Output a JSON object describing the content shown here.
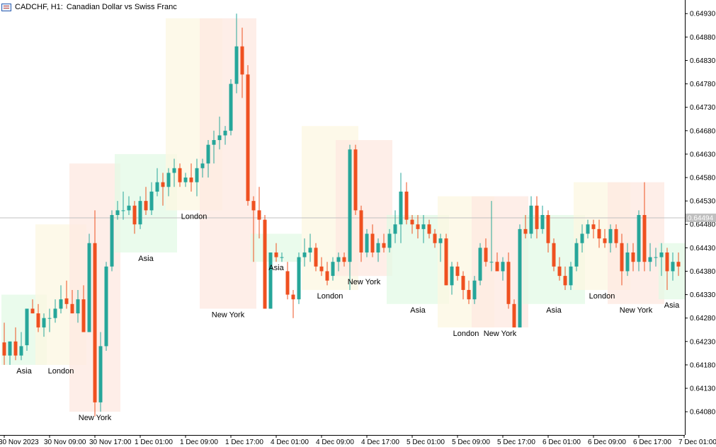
{
  "header": {
    "symbol": "CADCHF, H1:",
    "description": "Canadian Dollar vs Swiss Franc"
  },
  "colors": {
    "bull": "#26a69a",
    "bear": "#ef5020",
    "asia": "#e3fae6",
    "london": "#fcf7e2",
    "newyork": "#fde8e0",
    "current_price_line": "#c0c0c0",
    "current_price_tag": "#c0c0c0"
  },
  "chart_data": {
    "type": "candlestick",
    "title": "CADCHF, H1: Canadian Dollar vs Swiss Franc",
    "timeframe": "H1",
    "ylim": [
      0.6405,
      0.6495
    ],
    "y_ticks": [
      "0.64930",
      "0.64880",
      "0.64830",
      "0.64780",
      "0.64730",
      "0.64680",
      "0.64630",
      "0.64580",
      "0.64530",
      "0.64480",
      "0.64430",
      "0.64380",
      "0.64330",
      "0.64280",
      "0.64230",
      "0.64180",
      "0.64130",
      "0.64080"
    ],
    "x_ticks": [
      "30 Nov 2023",
      "30 Nov 09:00",
      "30 Nov 17:00",
      "1 Dec 01:00",
      "1 Dec 09:00",
      "1 Dec 17:00",
      "4 Dec 01:00",
      "4 Dec 09:00",
      "4 Dec 17:00",
      "5 Dec 01:00",
      "5 Dec 09:00",
      "5 Dec 17:00",
      "6 Dec 01:00",
      "6 Dec 09:00",
      "6 Dec 17:00",
      "7 Dec 01:00"
    ],
    "current_price": "0.64494",
    "candles": [
      {
        "o": 0.64228,
        "h": 0.6427,
        "l": 0.6418,
        "c": 0.642
      },
      {
        "o": 0.642,
        "h": 0.6423,
        "l": 0.6418,
        "c": 0.6423
      },
      {
        "o": 0.6423,
        "h": 0.6426,
        "l": 0.6419,
        "c": 0.642
      },
      {
        "o": 0.642,
        "h": 0.6425,
        "l": 0.6419,
        "c": 0.6422
      },
      {
        "o": 0.64222,
        "h": 0.643,
        "l": 0.6421,
        "c": 0.643
      },
      {
        "o": 0.643,
        "h": 0.6432,
        "l": 0.6429,
        "c": 0.6429
      },
      {
        "o": 0.6429,
        "h": 0.6431,
        "l": 0.6425,
        "c": 0.6426
      },
      {
        "o": 0.6426,
        "h": 0.6429,
        "l": 0.6424,
        "c": 0.6428
      },
      {
        "o": 0.6428,
        "h": 0.643,
        "l": 0.6425,
        "c": 0.6428
      },
      {
        "o": 0.6428,
        "h": 0.6432,
        "l": 0.6427,
        "c": 0.643
      },
      {
        "o": 0.643,
        "h": 0.6435,
        "l": 0.6429,
        "c": 0.6432
      },
      {
        "o": 0.64322,
        "h": 0.6436,
        "l": 0.643,
        "c": 0.6431
      },
      {
        "o": 0.6431,
        "h": 0.6434,
        "l": 0.6429,
        "c": 0.6429
      },
      {
        "o": 0.6429,
        "h": 0.6434,
        "l": 0.6427,
        "c": 0.6432
      },
      {
        "o": 0.6432,
        "h": 0.6435,
        "l": 0.6425,
        "c": 0.6425
      },
      {
        "o": 0.6425,
        "h": 0.6446,
        "l": 0.6425,
        "c": 0.6444
      },
      {
        "o": 0.6444,
        "h": 0.6451,
        "l": 0.6407,
        "c": 0.641
      },
      {
        "o": 0.641,
        "h": 0.6425,
        "l": 0.6408,
        "c": 0.6422
      },
      {
        "o": 0.6422,
        "h": 0.644,
        "l": 0.6421,
        "c": 0.6439
      },
      {
        "o": 0.6439,
        "h": 0.6451,
        "l": 0.6438,
        "c": 0.645
      },
      {
        "o": 0.645,
        "h": 0.6453,
        "l": 0.6449,
        "c": 0.6451
      },
      {
        "o": 0.6451,
        "h": 0.6455,
        "l": 0.6449,
        "c": 0.6451
      },
      {
        "o": 0.6451,
        "h": 0.6454,
        "l": 0.645,
        "c": 0.6452
      },
      {
        "o": 0.6452,
        "h": 0.6453,
        "l": 0.6446,
        "c": 0.6448
      },
      {
        "o": 0.6448,
        "h": 0.6454,
        "l": 0.6447,
        "c": 0.6453
      },
      {
        "o": 0.6453,
        "h": 0.6456,
        "l": 0.645,
        "c": 0.6451
      },
      {
        "o": 0.6451,
        "h": 0.6457,
        "l": 0.645,
        "c": 0.6455
      },
      {
        "o": 0.6455,
        "h": 0.646,
        "l": 0.6454,
        "c": 0.6457
      },
      {
        "o": 0.6457,
        "h": 0.6459,
        "l": 0.6452,
        "c": 0.6456
      },
      {
        "o": 0.6456,
        "h": 0.646,
        "l": 0.6454,
        "c": 0.6459
      },
      {
        "o": 0.6459,
        "h": 0.6462,
        "l": 0.6456,
        "c": 0.646
      },
      {
        "o": 0.646,
        "h": 0.6461,
        "l": 0.6456,
        "c": 0.6457
      },
      {
        "o": 0.6457,
        "h": 0.6459,
        "l": 0.6456,
        "c": 0.6458
      },
      {
        "o": 0.6458,
        "h": 0.6461,
        "l": 0.6455,
        "c": 0.6457
      },
      {
        "o": 0.6457,
        "h": 0.6462,
        "l": 0.6454,
        "c": 0.646
      },
      {
        "o": 0.646,
        "h": 0.6462,
        "l": 0.6458,
        "c": 0.6461
      },
      {
        "o": 0.6461,
        "h": 0.6466,
        "l": 0.6458,
        "c": 0.6465
      },
      {
        "o": 0.6465,
        "h": 0.6468,
        "l": 0.6461,
        "c": 0.6466
      },
      {
        "o": 0.6466,
        "h": 0.6471,
        "l": 0.6464,
        "c": 0.6467
      },
      {
        "o": 0.6467,
        "h": 0.6469,
        "l": 0.6465,
        "c": 0.6468
      },
      {
        "o": 0.6468,
        "h": 0.6479,
        "l": 0.6467,
        "c": 0.6478
      },
      {
        "o": 0.6478,
        "h": 0.6493,
        "l": 0.6476,
        "c": 0.6486
      },
      {
        "o": 0.6486,
        "h": 0.649,
        "l": 0.6475,
        "c": 0.648
      },
      {
        "o": 0.648,
        "h": 0.6482,
        "l": 0.6452,
        "c": 0.6453
      },
      {
        "o": 0.6453,
        "h": 0.6454,
        "l": 0.644,
        "c": 0.6451
      },
      {
        "o": 0.6451,
        "h": 0.6456,
        "l": 0.6445,
        "c": 0.6449
      },
      {
        "o": 0.6449,
        "h": 0.645,
        "l": 0.643,
        "c": 0.643
      },
      {
        "o": 0.643,
        "h": 0.6442,
        "l": 0.643,
        "c": 0.6442
      },
      {
        "o": 0.6442,
        "h": 0.6444,
        "l": 0.644,
        "c": 0.6441
      },
      {
        "o": 0.6441,
        "h": 0.6442,
        "l": 0.644,
        "c": 0.6441
      },
      {
        "o": 0.6438,
        "h": 0.644,
        "l": 0.6432,
        "c": 0.6433
      },
      {
        "o": 0.6433,
        "h": 0.6434,
        "l": 0.6428,
        "c": 0.6432
      },
      {
        "o": 0.6432,
        "h": 0.6442,
        "l": 0.6431,
        "c": 0.6441
      },
      {
        "o": 0.6441,
        "h": 0.6445,
        "l": 0.6439,
        "c": 0.6442
      },
      {
        "o": 0.6442,
        "h": 0.6446,
        "l": 0.644,
        "c": 0.6443
      },
      {
        "o": 0.6443,
        "h": 0.6444,
        "l": 0.6438,
        "c": 0.6439
      },
      {
        "o": 0.6439,
        "h": 0.6441,
        "l": 0.6437,
        "c": 0.6438
      },
      {
        "o": 0.6438,
        "h": 0.644,
        "l": 0.6435,
        "c": 0.6436
      },
      {
        "o": 0.6437,
        "h": 0.6441,
        "l": 0.6436,
        "c": 0.644
      },
      {
        "o": 0.644,
        "h": 0.6442,
        "l": 0.6438,
        "c": 0.6441
      },
      {
        "o": 0.6441,
        "h": 0.6442,
        "l": 0.6439,
        "c": 0.644
      },
      {
        "o": 0.644,
        "h": 0.6465,
        "l": 0.6434,
        "c": 0.6464
      },
      {
        "o": 0.6464,
        "h": 0.6465,
        "l": 0.645,
        "c": 0.6451
      },
      {
        "o": 0.6451,
        "h": 0.6452,
        "l": 0.644,
        "c": 0.6442
      },
      {
        "o": 0.6442,
        "h": 0.6447,
        "l": 0.6441,
        "c": 0.6446
      },
      {
        "o": 0.6446,
        "h": 0.6448,
        "l": 0.6441,
        "c": 0.6442
      },
      {
        "o": 0.6442,
        "h": 0.6445,
        "l": 0.644,
        "c": 0.6444
      },
      {
        "o": 0.6444,
        "h": 0.6446,
        "l": 0.6442,
        "c": 0.6443
      },
      {
        "o": 0.6443,
        "h": 0.6447,
        "l": 0.6442,
        "c": 0.6446
      },
      {
        "o": 0.6446,
        "h": 0.6451,
        "l": 0.6444,
        "c": 0.6448
      },
      {
        "o": 0.6448,
        "h": 0.6459,
        "l": 0.6444,
        "c": 0.6455
      },
      {
        "o": 0.6455,
        "h": 0.6457,
        "l": 0.6448,
        "c": 0.6449
      },
      {
        "o": 0.6449,
        "h": 0.645,
        "l": 0.6446,
        "c": 0.6448
      },
      {
        "o": 0.6448,
        "h": 0.645,
        "l": 0.6445,
        "c": 0.6447
      },
      {
        "o": 0.6447,
        "h": 0.645,
        "l": 0.6444,
        "c": 0.6448
      },
      {
        "o": 0.6448,
        "h": 0.6449,
        "l": 0.6445,
        "c": 0.6446
      },
      {
        "o": 0.6446,
        "h": 0.6447,
        "l": 0.6443,
        "c": 0.6444
      },
      {
        "o": 0.6444,
        "h": 0.6446,
        "l": 0.644,
        "c": 0.6445
      },
      {
        "o": 0.6445,
        "h": 0.6446,
        "l": 0.6435,
        "c": 0.6435
      },
      {
        "o": 0.6435,
        "h": 0.644,
        "l": 0.6433,
        "c": 0.6439
      },
      {
        "o": 0.6439,
        "h": 0.644,
        "l": 0.6436,
        "c": 0.6437
      },
      {
        "o": 0.6437,
        "h": 0.6438,
        "l": 0.6432,
        "c": 0.6434
      },
      {
        "o": 0.6434,
        "h": 0.6436,
        "l": 0.6431,
        "c": 0.6432
      },
      {
        "o": 0.6432,
        "h": 0.6437,
        "l": 0.6431,
        "c": 0.6436
      },
      {
        "o": 0.6436,
        "h": 0.6444,
        "l": 0.6435,
        "c": 0.6443
      },
      {
        "o": 0.6443,
        "h": 0.6445,
        "l": 0.6439,
        "c": 0.644
      },
      {
        "o": 0.644,
        "h": 0.6453,
        "l": 0.6438,
        "c": 0.644
      },
      {
        "o": 0.644,
        "h": 0.6442,
        "l": 0.6438,
        "c": 0.6438
      },
      {
        "o": 0.6438,
        "h": 0.6441,
        "l": 0.6436,
        "c": 0.644
      },
      {
        "o": 0.644,
        "h": 0.6442,
        "l": 0.643,
        "c": 0.6431
      },
      {
        "o": 0.6431,
        "h": 0.6432,
        "l": 0.6426,
        "c": 0.6426
      },
      {
        "o": 0.6426,
        "h": 0.6448,
        "l": 0.6426,
        "c": 0.6447
      },
      {
        "o": 0.6447,
        "h": 0.645,
        "l": 0.6445,
        "c": 0.6446
      },
      {
        "o": 0.6446,
        "h": 0.6454,
        "l": 0.6445,
        "c": 0.6452
      },
      {
        "o": 0.6452,
        "h": 0.6454,
        "l": 0.6445,
        "c": 0.6447
      },
      {
        "o": 0.6447,
        "h": 0.6452,
        "l": 0.6446,
        "c": 0.645
      },
      {
        "o": 0.645,
        "h": 0.6451,
        "l": 0.6442,
        "c": 0.6444
      },
      {
        "o": 0.6444,
        "h": 0.6445,
        "l": 0.6438,
        "c": 0.6439
      },
      {
        "o": 0.6439,
        "h": 0.6441,
        "l": 0.6436,
        "c": 0.6437
      },
      {
        "o": 0.6437,
        "h": 0.6439,
        "l": 0.6434,
        "c": 0.6435
      },
      {
        "o": 0.6435,
        "h": 0.644,
        "l": 0.6434,
        "c": 0.6439
      },
      {
        "o": 0.6439,
        "h": 0.6445,
        "l": 0.6438,
        "c": 0.6444
      },
      {
        "o": 0.6444,
        "h": 0.6448,
        "l": 0.6442,
        "c": 0.6446
      },
      {
        "o": 0.6446,
        "h": 0.6449,
        "l": 0.6445,
        "c": 0.6448
      },
      {
        "o": 0.6448,
        "h": 0.6449,
        "l": 0.6445,
        "c": 0.6447
      },
      {
        "o": 0.6447,
        "h": 0.6449,
        "l": 0.6443,
        "c": 0.6445
      },
      {
        "o": 0.6445,
        "h": 0.6447,
        "l": 0.6443,
        "c": 0.6444
      },
      {
        "o": 0.6444,
        "h": 0.6448,
        "l": 0.6442,
        "c": 0.6447
      },
      {
        "o": 0.6447,
        "h": 0.6448,
        "l": 0.6443,
        "c": 0.6444
      },
      {
        "o": 0.6444,
        "h": 0.6446,
        "l": 0.6435,
        "c": 0.6438
      },
      {
        "o": 0.6438,
        "h": 0.6444,
        "l": 0.6437,
        "c": 0.6442
      },
      {
        "o": 0.6442,
        "h": 0.6444,
        "l": 0.6438,
        "c": 0.644
      },
      {
        "o": 0.644,
        "h": 0.6451,
        "l": 0.6438,
        "c": 0.645
      },
      {
        "o": 0.645,
        "h": 0.6457,
        "l": 0.6438,
        "c": 0.644
      },
      {
        "o": 0.644,
        "h": 0.6444,
        "l": 0.6438,
        "c": 0.6441
      },
      {
        "o": 0.6441,
        "h": 0.6443,
        "l": 0.6439,
        "c": 0.6441
      },
      {
        "o": 0.6441,
        "h": 0.6444,
        "l": 0.6437,
        "c": 0.6442
      },
      {
        "o": 0.6442,
        "h": 0.6443,
        "l": 0.6434,
        "c": 0.6438
      },
      {
        "o": 0.6438,
        "h": 0.6442,
        "l": 0.6436,
        "c": 0.644
      },
      {
        "o": 0.644,
        "h": 0.6442,
        "l": 0.6437,
        "c": 0.6439
      },
      {
        "o": 0.6439,
        "h": 0.6443,
        "l": 0.6438,
        "c": 0.6441
      },
      {
        "o": 0.6441,
        "h": 0.6442,
        "l": 0.6434,
        "c": 0.6435
      },
      {
        "o": 0.6435,
        "h": 0.6437,
        "l": 0.6431,
        "c": 0.6433
      },
      {
        "o": 0.6433,
        "h": 0.6438,
        "l": 0.6432,
        "c": 0.6436
      },
      {
        "o": 0.6436,
        "h": 0.6438,
        "l": 0.6435,
        "c": 0.6437
      }
    ],
    "sessions": [
      {
        "name": "Asia",
        "type": "asia",
        "start": 0,
        "end": 7,
        "top": 0.6433,
        "bottom": 0.6418,
        "label_pos": "below",
        "label": "Asia"
      },
      {
        "name": "London",
        "type": "london",
        "start": 6,
        "end": 14,
        "top": 0.6448,
        "bottom": 0.6418,
        "label_pos": "below",
        "label": "London"
      },
      {
        "name": "New York",
        "type": "newyork",
        "start": 12,
        "end": 20,
        "top": 0.6461,
        "bottom": 0.6408,
        "label_pos": "below",
        "label": "New York"
      },
      {
        "name": "Asia",
        "type": "asia",
        "start": 20,
        "end": 30,
        "top": 0.6463,
        "bottom": 0.6442,
        "label_pos": "below",
        "label": "Asia"
      },
      {
        "name": "London",
        "type": "london",
        "start": 29,
        "end": 38,
        "top": 0.6492,
        "bottom": 0.6451,
        "label_pos": "below",
        "label": "London"
      },
      {
        "name": "New York",
        "type": "newyork",
        "start": 35,
        "end": 44,
        "top": 0.6492,
        "bottom": 0.643,
        "label_pos": "below",
        "label": "New York"
      },
      {
        "name": "Asia",
        "type": "asia",
        "start": 44,
        "end": 52,
        "top": 0.6446,
        "bottom": 0.644,
        "label_pos": "below",
        "label": "Asia"
      },
      {
        "name": "London",
        "type": "london",
        "start": 53,
        "end": 62,
        "top": 0.6469,
        "bottom": 0.6434,
        "label_pos": "below",
        "label": "London"
      },
      {
        "name": "New York",
        "type": "newyork",
        "start": 59,
        "end": 68,
        "top": 0.6466,
        "bottom": 0.6437,
        "label_pos": "below",
        "label": "New York"
      },
      {
        "name": "Asia",
        "type": "asia",
        "start": 68,
        "end": 78,
        "top": 0.645,
        "bottom": 0.6431,
        "label_pos": "below",
        "label": "Asia"
      },
      {
        "name": "London",
        "type": "london",
        "start": 77,
        "end": 86,
        "top": 0.6454,
        "bottom": 0.6426,
        "label_pos": "below",
        "label": "London"
      },
      {
        "name": "New York",
        "type": "newyork",
        "start": 83,
        "end": 92,
        "top": 0.6454,
        "bottom": 0.6426,
        "label_pos": "below",
        "label": "New York"
      },
      {
        "name": "Asia",
        "type": "asia",
        "start": 92,
        "end": 102,
        "top": 0.645,
        "bottom": 0.6431,
        "label_pos": "below",
        "label": "Asia"
      },
      {
        "name": "London",
        "type": "london",
        "start": 101,
        "end": 110,
        "top": 0.6457,
        "bottom": 0.6434,
        "label_pos": "below",
        "label": "London"
      },
      {
        "name": "New York",
        "type": "newyork",
        "start": 107,
        "end": 116,
        "top": 0.6457,
        "bottom": 0.6431,
        "label_pos": "below",
        "label": "New York"
      },
      {
        "name": "Asia",
        "type": "asia",
        "start": 116,
        "end": 120,
        "top": 0.6444,
        "bottom": 0.6432,
        "label_pos": "below",
        "label": "Asia"
      }
    ]
  }
}
